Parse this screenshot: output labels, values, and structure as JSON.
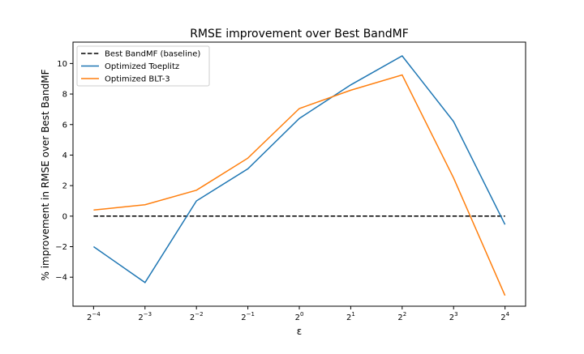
{
  "chart_data": {
    "type": "line",
    "title": "RMSE improvement over Best BandMF",
    "xlabel": "ε",
    "ylabel": "% improvement in RMSE over Best BandMF",
    "x_scale": "log2",
    "x": [
      -4,
      -3,
      -2,
      -1,
      0,
      1,
      2,
      3,
      4
    ],
    "x_tick_base": "2",
    "x_tick_exponents": [
      "−4",
      "−3",
      "−2",
      "−1",
      "0",
      "1",
      "2",
      "3",
      "4"
    ],
    "ylim": [
      -5.9,
      11.4
    ],
    "y_ticks": [
      -4,
      -2,
      0,
      2,
      4,
      6,
      8,
      10
    ],
    "y_tick_labels": [
      "−4",
      "−2",
      "0",
      "2",
      "4",
      "6",
      "8",
      "10"
    ],
    "grid": false,
    "legend_position": "top-left",
    "series": [
      {
        "name": "Best BandMF (baseline)",
        "color": "#000000",
        "dash": "dashed",
        "values": [
          0,
          0,
          0,
          0,
          0,
          0,
          0,
          0,
          0
        ]
      },
      {
        "name": "Optimized Toeplitz",
        "color": "#1f77b4",
        "dash": "solid",
        "values": [
          -2.0,
          -4.35,
          1.0,
          3.1,
          6.4,
          8.6,
          10.5,
          6.2,
          -0.55
        ]
      },
      {
        "name": "Optimized BLT-3",
        "color": "#ff7f0e",
        "dash": "solid",
        "values": [
          0.4,
          0.75,
          1.7,
          3.8,
          7.05,
          8.25,
          9.25,
          2.5,
          -5.2
        ]
      }
    ]
  }
}
